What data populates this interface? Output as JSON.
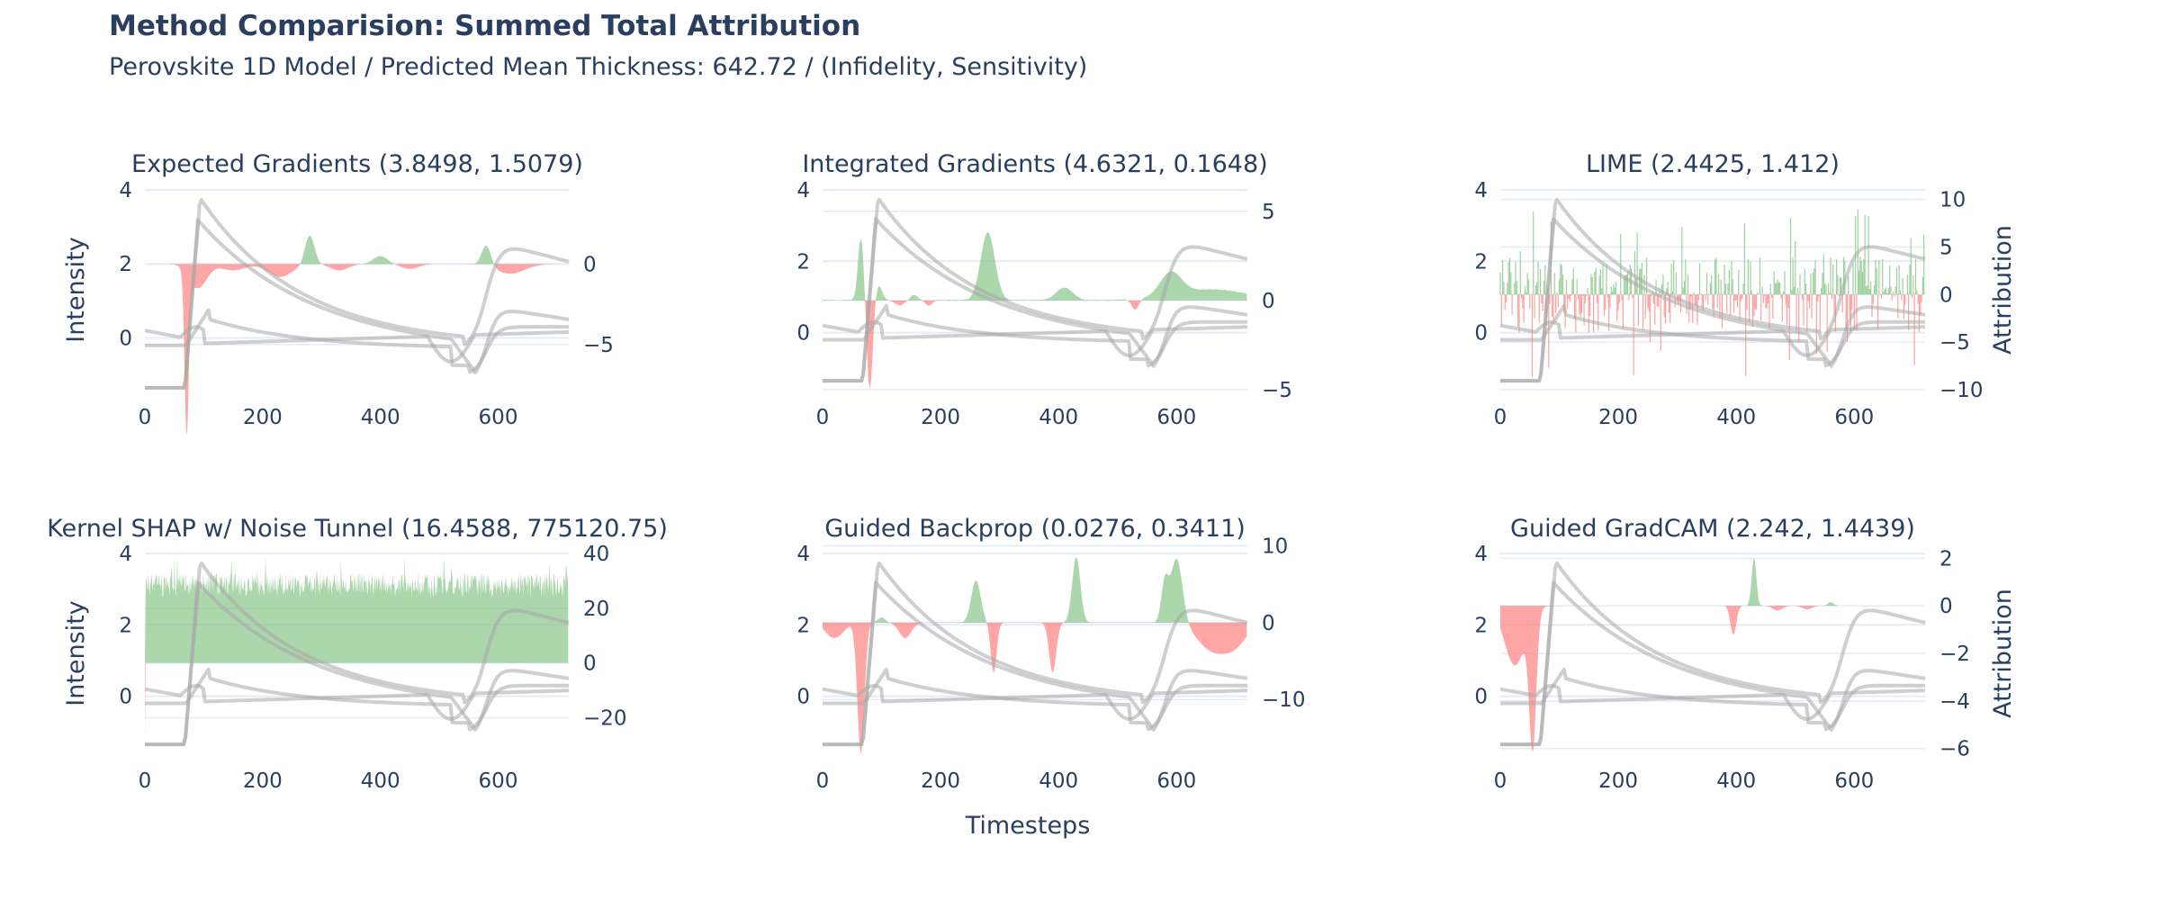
{
  "title": "Method Comparision: Summed Total Attribution",
  "subtitle": "Perovskite 1D Model / Predicted Mean Thickness: 642.72 / (Infidelity, Sensitivity)",
  "xlabel": "Timesteps",
  "ylabel_left": "Intensity",
  "ylabel_right": "Attribution",
  "colors": {
    "positive": "#7fc07f",
    "negative": "#ff8080",
    "signal": "#a8a8a8",
    "text": "#2a3f5f",
    "grid": "#e6ecf5"
  },
  "chart_data": [
    {
      "type": "area",
      "title": "Expected Gradients (3.8498, 1.5079)",
      "xticks": [
        0,
        200,
        400,
        600
      ],
      "xlim": [
        0,
        720
      ],
      "intensity_ylim": [
        -1.4,
        4.0
      ],
      "intensity_ticks": [
        0,
        2,
        4
      ],
      "attribution_ylim": [
        -7.8,
        4.6
      ],
      "attribution_ticks": [
        -5,
        0
      ],
      "peaks": [
        {
          "x": 72,
          "value": -12.0,
          "width": 4
        },
        {
          "x": 75,
          "value": 4.0,
          "width": 3
        },
        {
          "x": 90,
          "value": -1.5,
          "width": 15
        },
        {
          "x": 150,
          "value": -0.4,
          "width": 20
        },
        {
          "x": 230,
          "value": -0.8,
          "width": 20
        },
        {
          "x": 280,
          "value": 1.8,
          "width": 8
        },
        {
          "x": 330,
          "value": -0.4,
          "width": 15
        },
        {
          "x": 400,
          "value": 0.5,
          "width": 12
        },
        {
          "x": 450,
          "value": -0.3,
          "width": 15
        },
        {
          "x": 580,
          "value": 1.3,
          "width": 8
        },
        {
          "x": 620,
          "value": -0.6,
          "width": 25
        }
      ],
      "noise": 0.0,
      "baseline": 0.0
    },
    {
      "type": "area",
      "title": "Integrated Gradients (4.6321, 0.1648)",
      "xticks": [
        0,
        200,
        400,
        600
      ],
      "xlim": [
        0,
        720
      ],
      "intensity_ylim": [
        -1.6,
        4.0
      ],
      "intensity_ticks": [
        0,
        2,
        4
      ],
      "attribution_ylim": [
        -5.0,
        6.2
      ],
      "attribution_ticks": [
        -5,
        0,
        5
      ],
      "peaks": [
        {
          "x": 65,
          "value": 3.5,
          "width": 5
        },
        {
          "x": 80,
          "value": -5.0,
          "width": 5
        },
        {
          "x": 95,
          "value": 0.8,
          "width": 6
        },
        {
          "x": 130,
          "value": -0.3,
          "width": 8
        },
        {
          "x": 155,
          "value": 0.3,
          "width": 6
        },
        {
          "x": 180,
          "value": -0.3,
          "width": 6
        },
        {
          "x": 280,
          "value": 3.8,
          "width": 12
        },
        {
          "x": 410,
          "value": 0.7,
          "width": 14
        },
        {
          "x": 530,
          "value": -0.6,
          "width": 6
        },
        {
          "x": 590,
          "value": 1.3,
          "width": 18
        },
        {
          "x": 660,
          "value": 0.6,
          "width": 60
        }
      ],
      "noise": 0.05,
      "baseline": 0.0
    },
    {
      "type": "bar",
      "title": "LIME (2.4425, 1.412)",
      "xticks": [
        0,
        200,
        400,
        600
      ],
      "xlim": [
        0,
        720
      ],
      "intensity_ylim": [
        -1.6,
        4.0
      ],
      "intensity_ticks": [
        0,
        2,
        4
      ],
      "attribution_ylim": [
        -10.0,
        11.0
      ],
      "attribution_ticks": [
        -10,
        -5,
        0,
        5,
        10
      ],
      "peaks": [],
      "noise": 4.0,
      "baseline": 0.0
    },
    {
      "type": "area",
      "title": "Kernel SHAP w/ Noise Tunnel (16.4588, 775120.75)",
      "xticks": [
        0,
        200,
        400,
        600
      ],
      "xlim": [
        0,
        720
      ],
      "intensity_ylim": [
        -1.6,
        4.0
      ],
      "intensity_ticks": [
        0,
        2,
        4
      ],
      "attribution_ylim": [
        -33.0,
        40.0
      ],
      "attribution_ticks": [
        -20,
        0,
        20,
        40
      ],
      "peaks": [],
      "noise": 9.0,
      "baseline": 24.0
    },
    {
      "type": "area",
      "title": "Guided Backprop (0.0276, 0.3411)",
      "xticks": [
        0,
        200,
        400,
        600
      ],
      "xlim": [
        0,
        720
      ],
      "intensity_ylim": [
        -1.6,
        4.0
      ],
      "intensity_ticks": [
        0,
        2,
        4
      ],
      "attribution_ylim": [
        -17.0,
        9.0
      ],
      "attribution_ticks": [
        -10,
        0,
        10
      ],
      "peaks": [
        {
          "x": 20,
          "value": -2.0,
          "width": 15
        },
        {
          "x": 65,
          "value": -17.0,
          "width": 6
        },
        {
          "x": 100,
          "value": 0.7,
          "width": 6
        },
        {
          "x": 140,
          "value": -2.0,
          "width": 10
        },
        {
          "x": 260,
          "value": 5.5,
          "width": 8
        },
        {
          "x": 290,
          "value": -6.5,
          "width": 5
        },
        {
          "x": 390,
          "value": -6.5,
          "width": 6
        },
        {
          "x": 430,
          "value": 8.5,
          "width": 7
        },
        {
          "x": 580,
          "value": 5.0,
          "width": 6
        },
        {
          "x": 600,
          "value": 8.5,
          "width": 10
        },
        {
          "x": 660,
          "value": -3.5,
          "width": 25
        },
        {
          "x": 700,
          "value": -2.5,
          "width": 20
        }
      ],
      "noise": 0.0,
      "baseline": 0.0
    },
    {
      "type": "area",
      "title": "Guided GradCAM (2.242, 1.4439)",
      "xticks": [
        0,
        200,
        400,
        600
      ],
      "xlim": [
        0,
        720
      ],
      "intensity_ylim": [
        -1.6,
        4.0
      ],
      "intensity_ticks": [
        0,
        2,
        4
      ],
      "attribution_ylim": [
        -6.2,
        2.2
      ],
      "attribution_ticks": [
        -6,
        -4,
        -2,
        0,
        2
      ],
      "peaks": [
        {
          "x": 25,
          "value": -2.5,
          "width": 18
        },
        {
          "x": 55,
          "value": -5.5,
          "width": 6
        },
        {
          "x": 395,
          "value": -1.2,
          "width": 5
        },
        {
          "x": 430,
          "value": 2.0,
          "width": 4
        },
        {
          "x": 470,
          "value": -0.2,
          "width": 8
        },
        {
          "x": 520,
          "value": -0.15,
          "width": 8
        },
        {
          "x": 560,
          "value": 0.15,
          "width": 5
        }
      ],
      "noise": 0.0,
      "baseline": 0.0
    }
  ]
}
